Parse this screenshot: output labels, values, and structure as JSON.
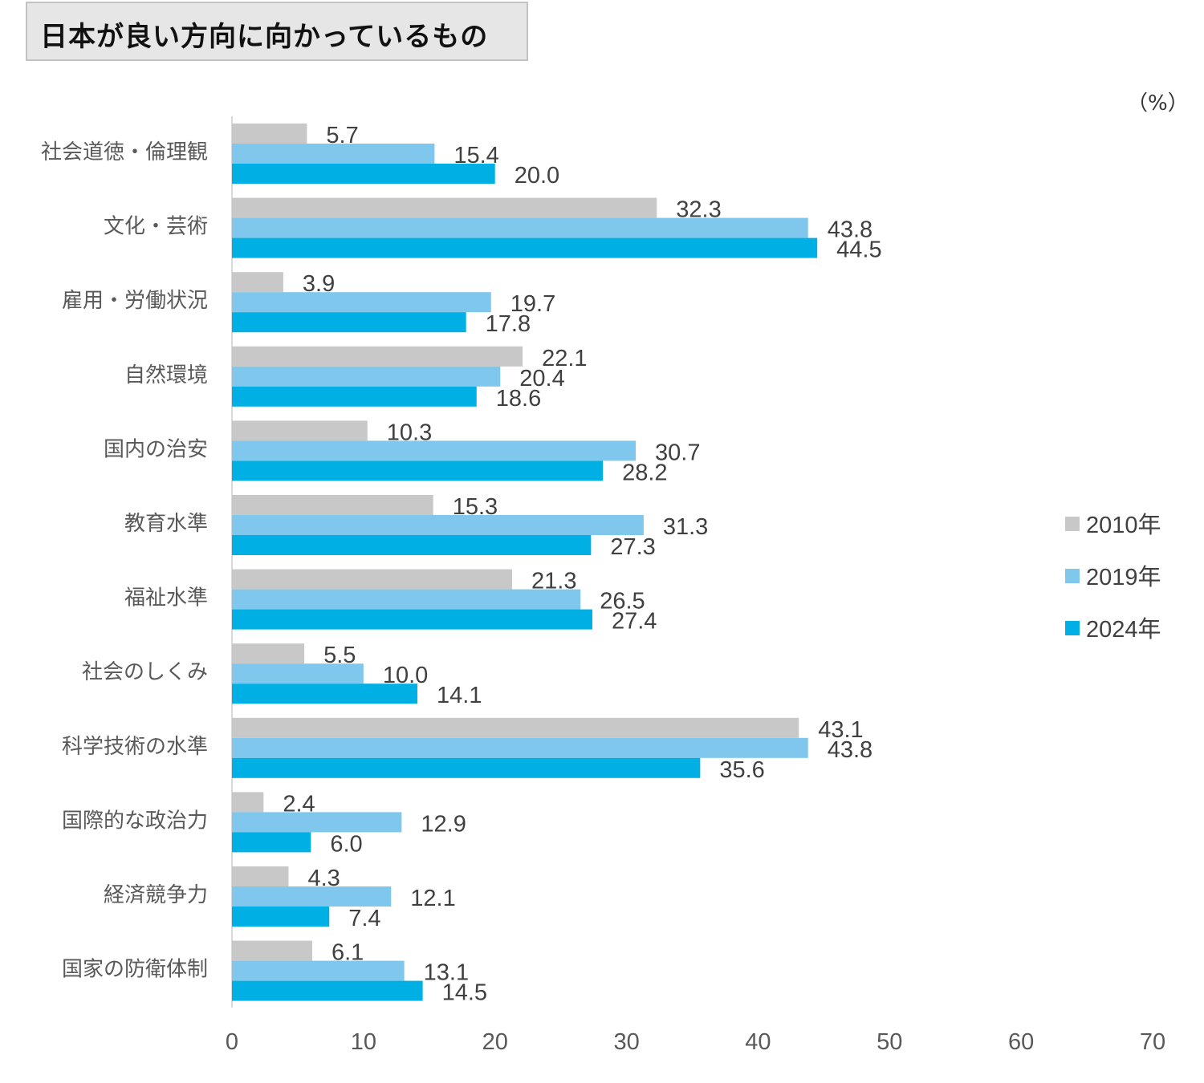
{
  "title": "日本が良い方向に向かっているもの",
  "unit_label": "（%）",
  "chart_data": {
    "type": "bar",
    "orientation": "horizontal",
    "title": "日本が良い方向に向かっているもの",
    "xlabel": "",
    "ylabel": "",
    "xlim": [
      0,
      70
    ],
    "x_ticks": [
      0,
      10,
      20,
      30,
      40,
      50,
      60,
      70
    ],
    "grid": false,
    "legend_position": "right",
    "categories": [
      "社会道徳・倫理観",
      "文化・芸術",
      "雇用・労働状況",
      "自然環境",
      "国内の治安",
      "教育水準",
      "福祉水準",
      "社会のしくみ",
      "科学技術の水準",
      "国際的な政治力",
      "経済競争力",
      "国家の防衛体制"
    ],
    "series": [
      {
        "name": "2010年",
        "color": "#c8c8c8",
        "values": [
          5.7,
          32.3,
          3.9,
          22.1,
          10.3,
          15.3,
          21.3,
          5.5,
          43.1,
          2.4,
          4.3,
          6.1
        ]
      },
      {
        "name": "2019年",
        "color": "#7fc7ec",
        "values": [
          15.4,
          43.8,
          19.7,
          20.4,
          30.7,
          31.3,
          26.5,
          10.0,
          43.8,
          12.9,
          12.1,
          13.1
        ]
      },
      {
        "name": "2024年",
        "color": "#00b0e4",
        "values": [
          20.0,
          44.5,
          17.8,
          18.6,
          28.2,
          27.3,
          27.4,
          14.1,
          35.6,
          6.0,
          7.4,
          14.5
        ]
      }
    ]
  }
}
